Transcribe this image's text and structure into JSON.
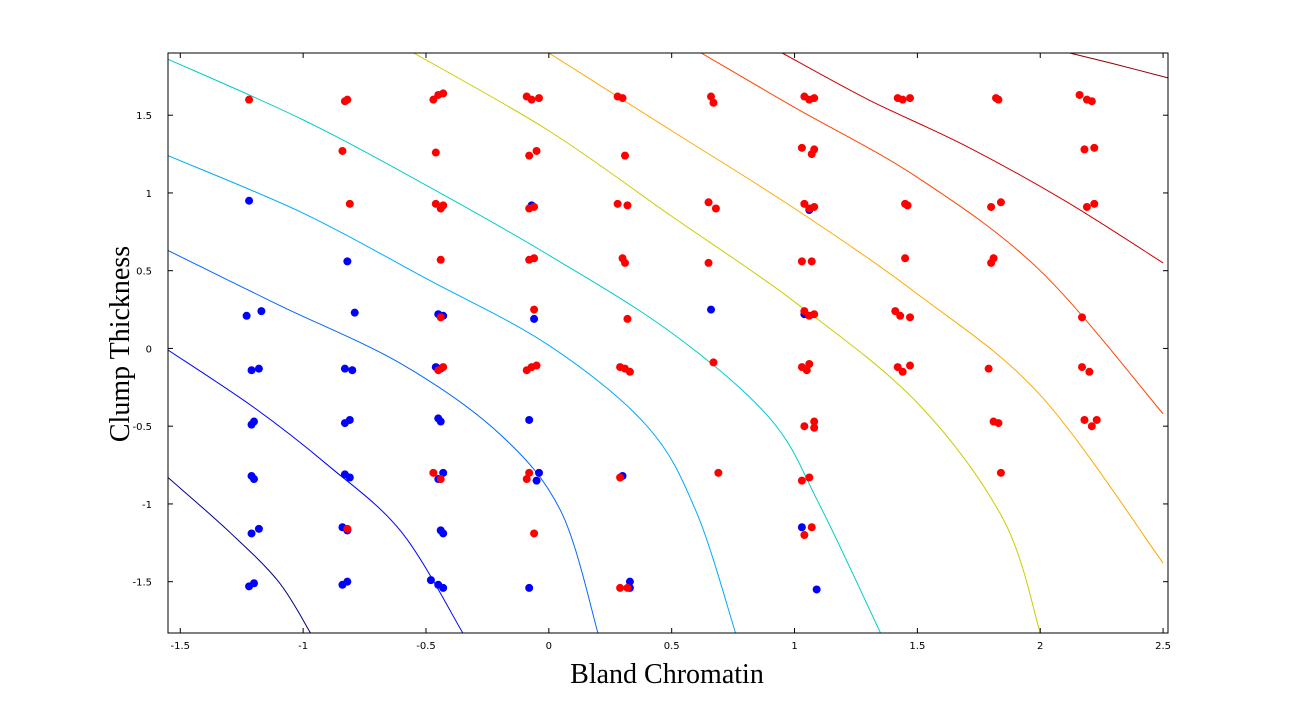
{
  "chart_data": {
    "type": "scatter",
    "title": "",
    "xlabel": "Bland Chromatin",
    "ylabel": "Clump Thickness",
    "xlim": [
      -1.55,
      2.52
    ],
    "ylim": [
      -1.83,
      1.9
    ],
    "xticks": [
      -1.5,
      -1,
      -0.5,
      0,
      0.5,
      1,
      1.5,
      2,
      2.5
    ],
    "xtick_labels": [
      "-1.5",
      "-1",
      "-0.5",
      "0",
      "0.5",
      "1",
      "1.5",
      "2",
      "2.5"
    ],
    "yticks": [
      -1.5,
      -1,
      -0.5,
      0,
      0.5,
      1,
      1.5
    ],
    "ytick_labels": [
      "-1.5",
      "-1",
      "-0.5",
      "0",
      "0.5",
      "1",
      "1.5"
    ],
    "grid": false,
    "legend": "none",
    "series": [
      {
        "color": "#0000ff",
        "points": [
          [
            -1.22,
            -1.53
          ],
          [
            -1.2,
            -1.51
          ],
          [
            -1.21,
            -1.19
          ],
          [
            -1.18,
            -1.16
          ],
          [
            -1.21,
            -0.82
          ],
          [
            -1.2,
            -0.84
          ],
          [
            -1.21,
            -0.49
          ],
          [
            -1.2,
            -0.47
          ],
          [
            -1.21,
            -0.14
          ],
          [
            -1.18,
            -0.13
          ],
          [
            -1.23,
            0.21
          ],
          [
            -1.17,
            0.24
          ],
          [
            -1.22,
            0.95
          ],
          [
            -0.84,
            -1.52
          ],
          [
            -0.82,
            -1.5
          ],
          [
            -0.84,
            -1.15
          ],
          [
            -0.82,
            -1.17
          ],
          [
            -0.83,
            -0.81
          ],
          [
            -0.81,
            -0.83
          ],
          [
            -0.83,
            -0.48
          ],
          [
            -0.81,
            -0.46
          ],
          [
            -0.83,
            -0.13
          ],
          [
            -0.8,
            -0.14
          ],
          [
            -0.79,
            0.23
          ],
          [
            -0.82,
            0.56
          ],
          [
            -0.45,
            -1.52
          ],
          [
            -0.43,
            -1.54
          ],
          [
            -0.48,
            -1.49
          ],
          [
            -0.44,
            -1.17
          ],
          [
            -0.43,
            -1.19
          ],
          [
            -0.45,
            -0.84
          ],
          [
            -0.43,
            -0.8
          ],
          [
            -0.44,
            -0.47
          ],
          [
            -0.45,
            -0.45
          ],
          [
            -0.44,
            -0.13
          ],
          [
            -0.46,
            -0.12
          ],
          [
            -0.45,
            0.22
          ],
          [
            -0.43,
            0.21
          ],
          [
            -0.08,
            -1.54
          ],
          [
            -0.08,
            -0.46
          ],
          [
            -0.04,
            -0.8
          ],
          [
            -0.05,
            -0.85
          ],
          [
            -0.06,
            0.19
          ],
          [
            -0.07,
            0.92
          ],
          [
            0.3,
            -0.82
          ],
          [
            0.33,
            -1.5
          ],
          [
            0.33,
            -1.54
          ],
          [
            0.66,
            0.25
          ],
          [
            1.03,
            -1.15
          ],
          [
            1.09,
            -1.55
          ],
          [
            1.04,
            0.22
          ],
          [
            1.06,
            0.89
          ]
        ]
      },
      {
        "color": "#ff0000",
        "points": [
          [
            -1.22,
            1.6
          ],
          [
            -0.84,
            1.27
          ],
          [
            -0.83,
            1.59
          ],
          [
            -0.82,
            1.6
          ],
          [
            -0.82,
            -1.16
          ],
          [
            -0.81,
            0.93
          ],
          [
            -0.47,
            1.6
          ],
          [
            -0.45,
            1.63
          ],
          [
            -0.43,
            1.64
          ],
          [
            -0.46,
            1.26
          ],
          [
            -0.46,
            0.93
          ],
          [
            -0.44,
            0.9
          ],
          [
            -0.43,
            0.92
          ],
          [
            -0.44,
            0.57
          ],
          [
            -0.44,
            0.2
          ],
          [
            -0.45,
            -0.14
          ],
          [
            -0.43,
            -0.12
          ],
          [
            -0.47,
            -0.8
          ],
          [
            -0.44,
            -0.84
          ],
          [
            -0.09,
            1.62
          ],
          [
            -0.07,
            1.6
          ],
          [
            -0.04,
            1.61
          ],
          [
            -0.08,
            1.24
          ],
          [
            -0.05,
            1.27
          ],
          [
            -0.08,
            0.9
          ],
          [
            -0.06,
            0.91
          ],
          [
            -0.08,
            0.57
          ],
          [
            -0.06,
            0.58
          ],
          [
            -0.06,
            0.25
          ],
          [
            -0.09,
            -0.14
          ],
          [
            -0.07,
            -0.12
          ],
          [
            -0.05,
            -0.11
          ],
          [
            -0.08,
            -0.8
          ],
          [
            -0.09,
            -0.84
          ],
          [
            -0.06,
            -1.19
          ],
          [
            0.28,
            1.62
          ],
          [
            0.3,
            1.61
          ],
          [
            0.31,
            1.24
          ],
          [
            0.28,
            0.93
          ],
          [
            0.32,
            0.92
          ],
          [
            0.3,
            0.58
          ],
          [
            0.31,
            0.55
          ],
          [
            0.32,
            0.19
          ],
          [
            0.29,
            -0.12
          ],
          [
            0.31,
            -0.13
          ],
          [
            0.33,
            -0.15
          ],
          [
            0.29,
            -0.83
          ],
          [
            0.29,
            -1.54
          ],
          [
            0.32,
            -1.54
          ],
          [
            0.66,
            1.62
          ],
          [
            0.67,
            1.58
          ],
          [
            0.65,
            0.94
          ],
          [
            0.68,
            0.9
          ],
          [
            0.65,
            0.55
          ],
          [
            0.67,
            -0.09
          ],
          [
            0.69,
            -0.8
          ],
          [
            1.04,
            1.62
          ],
          [
            1.06,
            1.6
          ],
          [
            1.08,
            1.61
          ],
          [
            1.03,
            1.29
          ],
          [
            1.07,
            1.25
          ],
          [
            1.08,
            1.28
          ],
          [
            1.04,
            0.93
          ],
          [
            1.06,
            0.9
          ],
          [
            1.08,
            0.91
          ],
          [
            1.03,
            0.56
          ],
          [
            1.07,
            0.56
          ],
          [
            1.04,
            0.24
          ],
          [
            1.06,
            0.21
          ],
          [
            1.08,
            0.22
          ],
          [
            1.03,
            -0.12
          ],
          [
            1.05,
            -0.14
          ],
          [
            1.06,
            -0.1
          ],
          [
            1.04,
            -0.5
          ],
          [
            1.08,
            -0.47
          ],
          [
            1.08,
            -0.51
          ],
          [
            1.03,
            -0.85
          ],
          [
            1.06,
            -0.83
          ],
          [
            1.04,
            -1.2
          ],
          [
            1.07,
            -1.15
          ],
          [
            1.42,
            1.61
          ],
          [
            1.44,
            1.6
          ],
          [
            1.47,
            1.61
          ],
          [
            1.45,
            0.93
          ],
          [
            1.46,
            0.92
          ],
          [
            1.45,
            0.58
          ],
          [
            1.41,
            0.24
          ],
          [
            1.43,
            0.21
          ],
          [
            1.47,
            0.2
          ],
          [
            1.42,
            -0.12
          ],
          [
            1.44,
            -0.15
          ],
          [
            1.47,
            -0.11
          ],
          [
            1.82,
            1.61
          ],
          [
            1.83,
            1.6
          ],
          [
            1.8,
            0.91
          ],
          [
            1.84,
            0.94
          ],
          [
            1.81,
            0.58
          ],
          [
            1.8,
            0.55
          ],
          [
            1.79,
            -0.13
          ],
          [
            1.81,
            -0.47
          ],
          [
            1.83,
            -0.48
          ],
          [
            1.84,
            -0.8
          ],
          [
            2.16,
            1.63
          ],
          [
            2.19,
            1.6
          ],
          [
            2.21,
            1.59
          ],
          [
            2.18,
            1.28
          ],
          [
            2.22,
            1.29
          ],
          [
            2.19,
            0.91
          ],
          [
            2.22,
            0.93
          ],
          [
            2.17,
            0.2
          ],
          [
            2.17,
            -0.12
          ],
          [
            2.2,
            -0.15
          ],
          [
            2.18,
            -0.46
          ],
          [
            2.21,
            -0.5
          ],
          [
            2.23,
            -0.46
          ]
        ]
      }
    ],
    "contours": [
      {
        "color": "#00008b",
        "points": [
          [
            -1.55,
            -0.83
          ],
          [
            -1.3,
            -1.18
          ],
          [
            -1.1,
            -1.5
          ],
          [
            -0.97,
            -1.83
          ]
        ]
      },
      {
        "color": "#0000ff",
        "points": [
          [
            -1.55,
            -0.01
          ],
          [
            -1.2,
            -0.38
          ],
          [
            -0.9,
            -0.75
          ],
          [
            -0.6,
            -1.18
          ],
          [
            -0.35,
            -1.83
          ]
        ]
      },
      {
        "color": "#0066ff",
        "points": [
          [
            -1.55,
            0.63
          ],
          [
            -1.1,
            0.28
          ],
          [
            -0.6,
            -0.1
          ],
          [
            -0.2,
            -0.55
          ],
          [
            0.05,
            -1.05
          ],
          [
            0.2,
            -1.83
          ]
        ]
      },
      {
        "color": "#00aaff",
        "points": [
          [
            -1.55,
            1.24
          ],
          [
            -1.0,
            0.87
          ],
          [
            -0.5,
            0.45
          ],
          [
            0,
            0.02
          ],
          [
            0.4,
            -0.5
          ],
          [
            0.6,
            -1.05
          ],
          [
            0.76,
            -1.83
          ]
        ]
      },
      {
        "color": "#00cccc",
        "points": [
          [
            -1.55,
            1.86
          ],
          [
            -1.0,
            1.47
          ],
          [
            -0.5,
            1.05
          ],
          [
            0,
            0.6
          ],
          [
            0.5,
            0.1
          ],
          [
            0.9,
            -0.45
          ],
          [
            1.1,
            -1.0
          ],
          [
            1.35,
            -1.83
          ]
        ]
      },
      {
        "color": "#cccc00",
        "points": [
          [
            -0.55,
            1.9
          ],
          [
            0,
            1.4
          ],
          [
            0.5,
            0.85
          ],
          [
            1.0,
            0.3
          ],
          [
            1.5,
            -0.35
          ],
          [
            1.85,
            -1.1
          ],
          [
            2.0,
            -1.83
          ]
        ]
      },
      {
        "color": "#ffaa00",
        "points": [
          [
            0.0,
            1.9
          ],
          [
            0.5,
            1.4
          ],
          [
            1.0,
            0.9
          ],
          [
            1.5,
            0.35
          ],
          [
            2.0,
            -0.3
          ],
          [
            2.5,
            -1.38
          ]
        ]
      },
      {
        "color": "#ff4400",
        "points": [
          [
            0.62,
            1.9
          ],
          [
            1.0,
            1.55
          ],
          [
            1.5,
            1.1
          ],
          [
            2.0,
            0.5
          ],
          [
            2.5,
            -0.42
          ]
        ]
      },
      {
        "color": "#cc0000",
        "points": [
          [
            0.95,
            1.9
          ],
          [
            1.3,
            1.6
          ],
          [
            1.7,
            1.3
          ],
          [
            2.1,
            0.95
          ],
          [
            2.5,
            0.55
          ]
        ]
      },
      {
        "color": "#8b0000",
        "points": [
          [
            2.12,
            1.9
          ],
          [
            2.3,
            1.83
          ],
          [
            2.52,
            1.74
          ]
        ]
      }
    ]
  }
}
